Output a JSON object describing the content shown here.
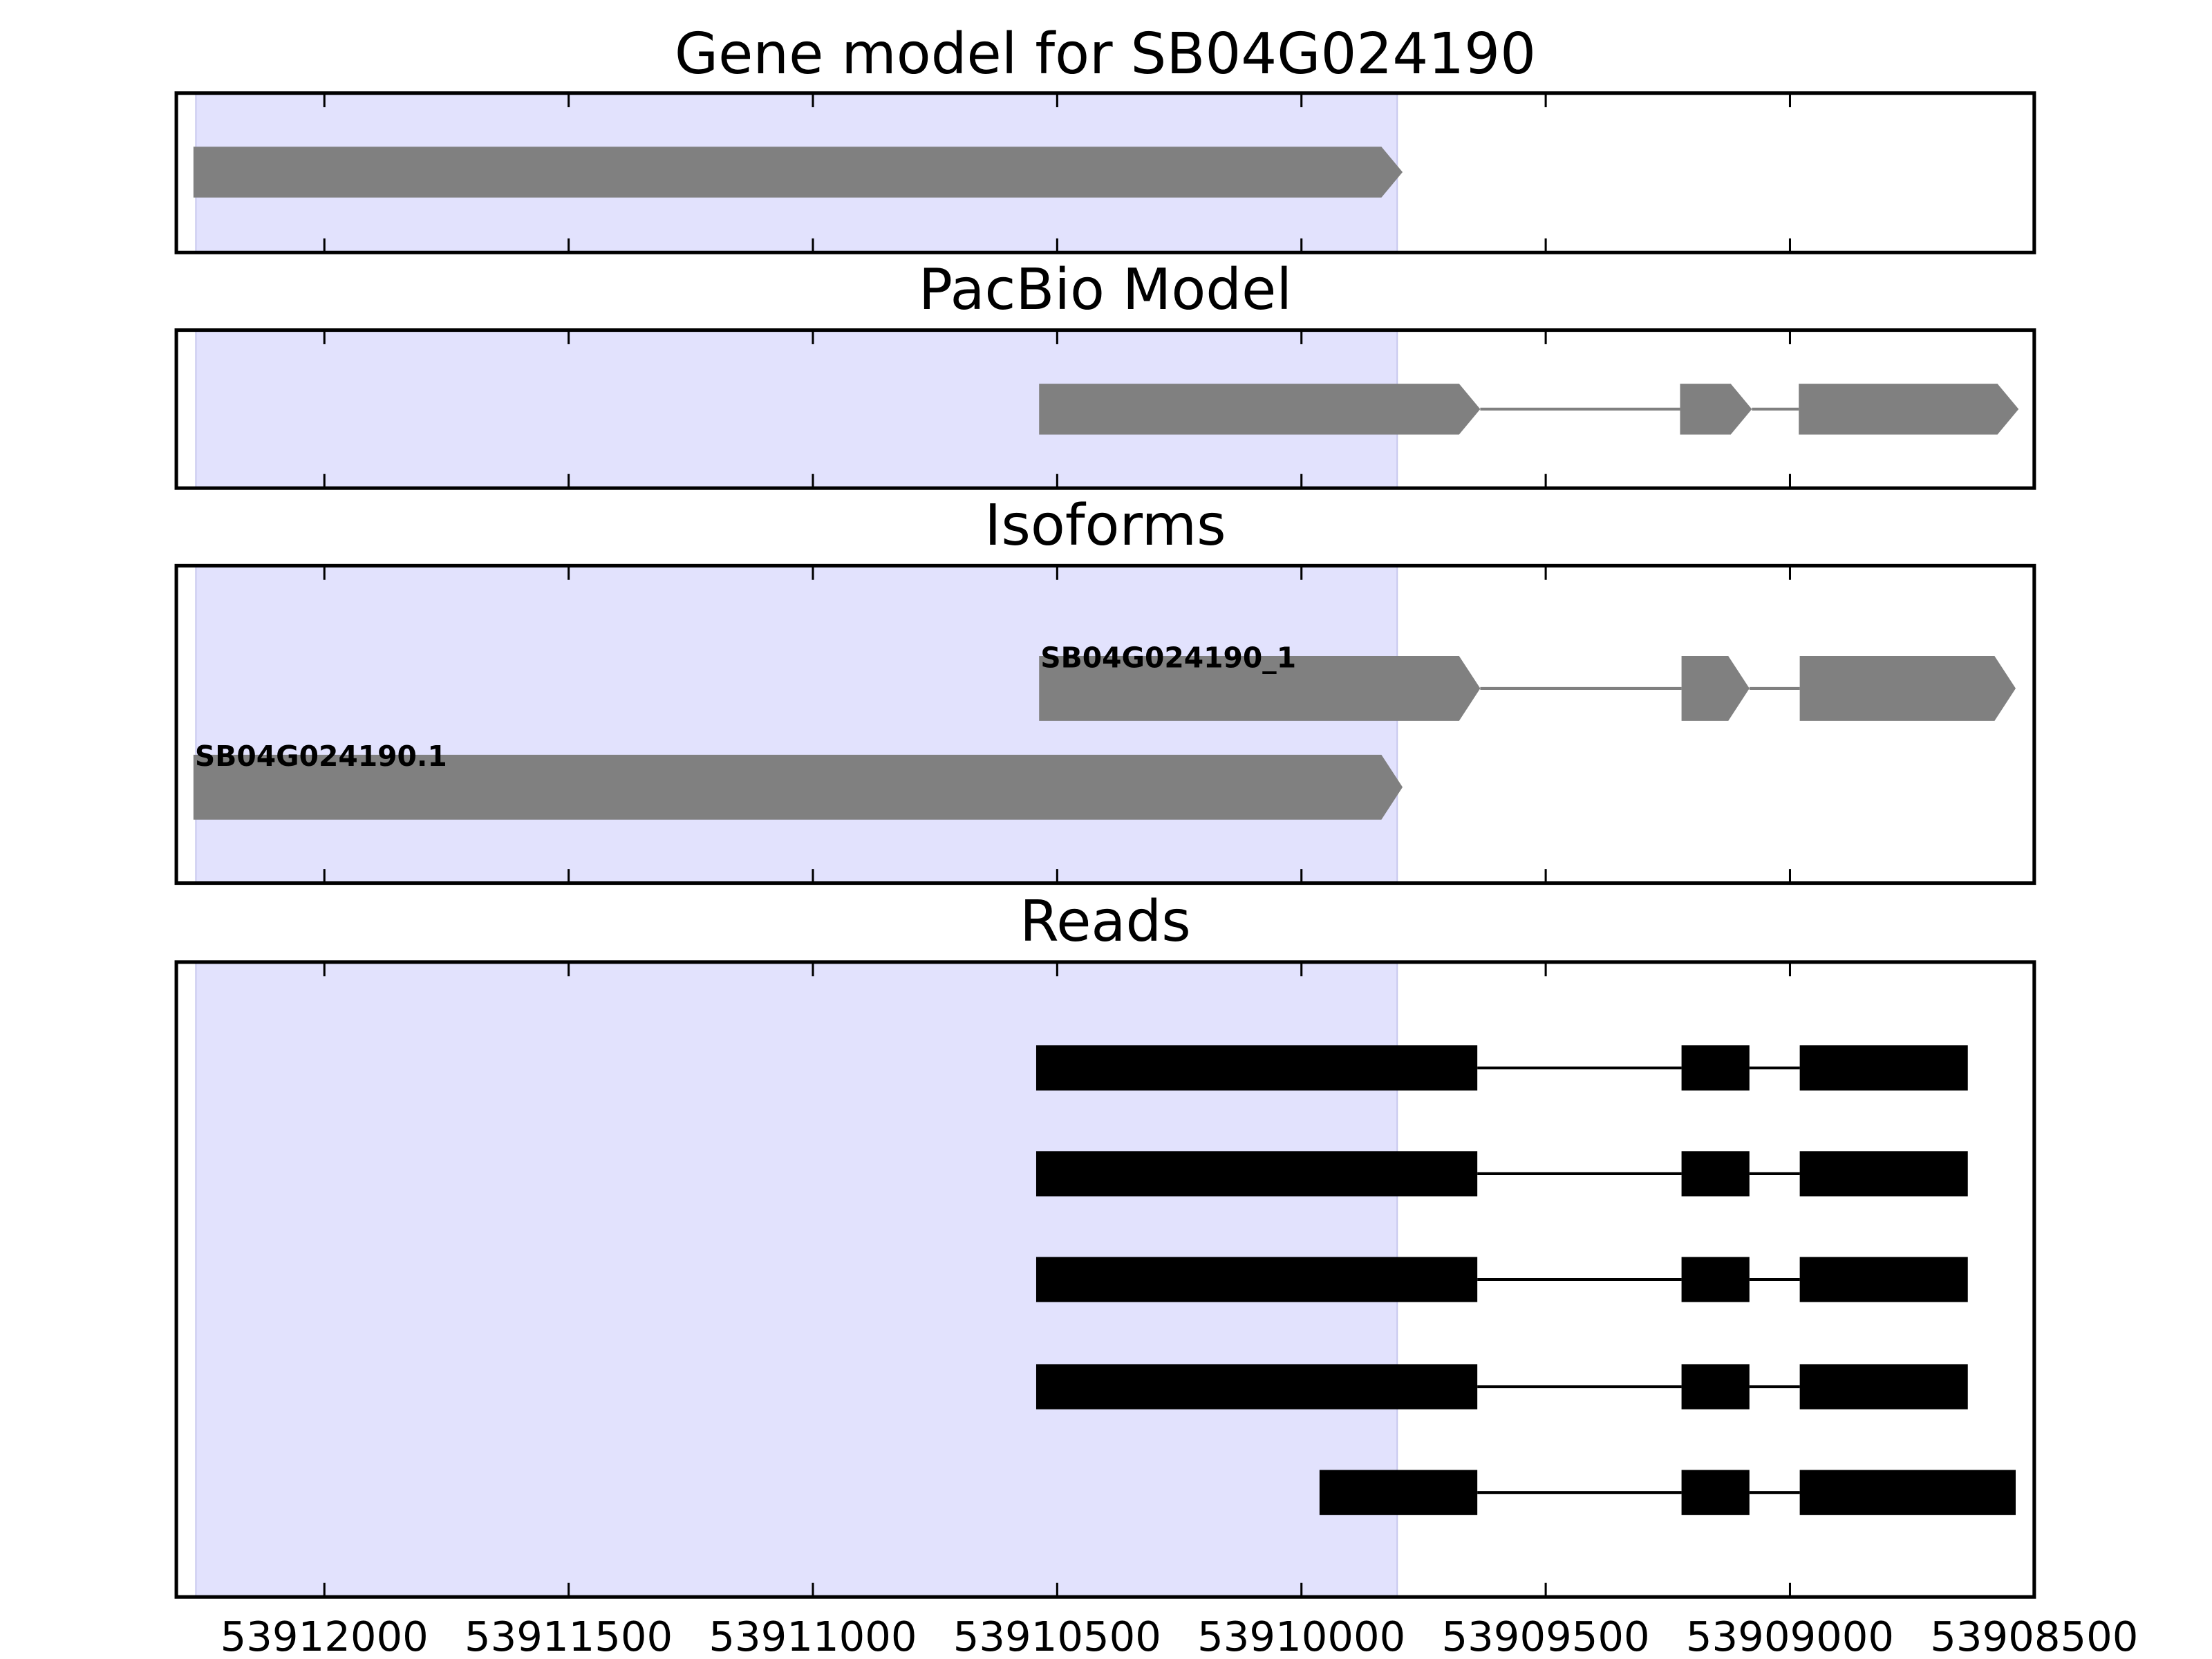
{
  "chart_data": [
    {
      "type": "gene-track",
      "title": "Gene model for SB04G024190",
      "style": "arrow",
      "color": "#808080",
      "xlim": [
        53912303,
        53908500
      ],
      "xticks": [
        53912000,
        53911500,
        53911000,
        53910500,
        53910000,
        53909500,
        53909000,
        53908500
      ],
      "highlight": [
        53912263,
        53909804
      ],
      "highlight_color": "#e2e2fd",
      "features": [
        {
          "exons": [
            [
              53912268,
              53909793
            ]
          ]
        }
      ]
    },
    {
      "type": "gene-track",
      "title": "PacBio Model",
      "style": "arrow",
      "color": "#808080",
      "xlim": [
        53912303,
        53908500
      ],
      "xticks": [
        53912000,
        53911500,
        53911000,
        53910500,
        53910000,
        53909500,
        53909000,
        53908500
      ],
      "highlight": [
        53912263,
        53909804
      ],
      "highlight_color": "#e2e2fd",
      "features": [
        {
          "exons": [
            [
              53910537,
              53909634
            ],
            [
              53909225,
              53909078
            ],
            [
              53908982,
              53908532
            ]
          ]
        }
      ]
    },
    {
      "type": "gene-track",
      "title": "Isoforms",
      "style": "arrow",
      "color": "#808080",
      "xlim": [
        53912303,
        53908500
      ],
      "xticks": [
        53912000,
        53911500,
        53911000,
        53910500,
        53910000,
        53909500,
        53909000,
        53908500
      ],
      "highlight": [
        53912263,
        53909804
      ],
      "highlight_color": "#e2e2fd",
      "features": [
        {
          "name": "SB04G024190_1",
          "exons": [
            [
              53910537,
              53909634
            ],
            [
              53909222,
              53909083
            ],
            [
              53908980,
              53908538
            ]
          ]
        },
        {
          "name": "SB04G024190.1",
          "exons": [
            [
              53912268,
              53909793
            ]
          ]
        }
      ]
    },
    {
      "type": "gene-track",
      "title": "Reads",
      "style": "box",
      "color": "#000000",
      "tick_labels": true,
      "xlim": [
        53912303,
        53908500
      ],
      "xticks": [
        53912000,
        53911500,
        53911000,
        53910500,
        53910000,
        53909500,
        53909000,
        53908500
      ],
      "highlight": [
        53912263,
        53909804
      ],
      "highlight_color": "#e2e2fd",
      "features": [
        {
          "exons": [
            [
              53910543,
              53909640
            ],
            [
              53909222,
              53909083
            ],
            [
              53908980,
              53908636
            ]
          ]
        },
        {
          "exons": [
            [
              53910543,
              53909640
            ],
            [
              53909222,
              53909083
            ],
            [
              53908980,
              53908636
            ]
          ]
        },
        {
          "exons": [
            [
              53910543,
              53909640
            ],
            [
              53909222,
              53909083
            ],
            [
              53908980,
              53908636
            ]
          ]
        },
        {
          "exons": [
            [
              53910543,
              53909640
            ],
            [
              53909222,
              53909083
            ],
            [
              53908980,
              53908636
            ]
          ]
        },
        {
          "exons": [
            [
              53909963,
              53909640
            ],
            [
              53909222,
              53909083
            ],
            [
              53908980,
              53908538
            ]
          ]
        }
      ]
    }
  ]
}
